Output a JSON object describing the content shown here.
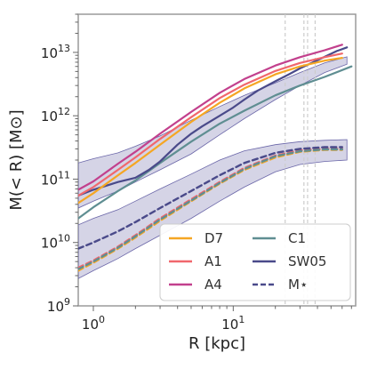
{
  "chart_data": {
    "type": "line",
    "xlabel": "R [kpc]",
    "ylabel": "M(< R) [M⊙]",
    "xscale": "log",
    "yscale": "log",
    "xlim": [
      0.78,
      75
    ],
    "ylim": [
      1000000000.0,
      40000000000000.0
    ],
    "grid": false,
    "legend_placement": "lower-right",
    "x_ticks": [
      {
        "value": 1,
        "base": "10",
        "exp": "0"
      },
      {
        "value": 10,
        "base": "10",
        "exp": "1"
      }
    ],
    "y_ticks": [
      {
        "value": 1000000000.0,
        "base": "10",
        "exp": "9"
      },
      {
        "value": 10000000000.0,
        "base": "10",
        "exp": "10"
      },
      {
        "value": 100000000000.0,
        "base": "10",
        "exp": "11"
      },
      {
        "value": 1000000000000.0,
        "base": "10",
        "exp": "12"
      },
      {
        "value": 10000000000000.0,
        "base": "10",
        "exp": "13"
      }
    ],
    "vlines": [
      {
        "x": 23.5,
        "color": "#cccccc"
      },
      {
        "x": 32,
        "color": "#cccccc"
      },
      {
        "x": 34,
        "color": "#cccccc"
      },
      {
        "x": 38.5,
        "color": "#cccccc"
      }
    ],
    "bands": [
      {
        "color": "#b3b0d1",
        "x": [
          0.78,
          1,
          1.5,
          2,
          3,
          5,
          8,
          12,
          20,
          30,
          45,
          65
        ],
        "upper": [
          180000000000.0,
          210000000000.0,
          260000000000.0,
          330000000000.0,
          480000000000.0,
          850000000000.0,
          1400000000000.0,
          2100000000000.0,
          3300000000000.0,
          4800000000000.0,
          6800000000000.0,
          8500000000000.0
        ],
        "lower": [
          35000000000.0,
          45000000000.0,
          65000000000.0,
          90000000000.0,
          140000000000.0,
          250000000000.0,
          500000000000.0,
          900000000000.0,
          1800000000000.0,
          3000000000000.0,
          4800000000000.0,
          6500000000000.0
        ]
      },
      {
        "color": "#b3b0d1",
        "x": [
          0.78,
          1,
          1.5,
          2,
          3,
          5,
          8,
          12,
          20,
          30,
          45,
          65
        ],
        "upper": [
          19000000000.0,
          24000000000.0,
          33000000000.0,
          45000000000.0,
          70000000000.0,
          120000000000.0,
          200000000000.0,
          280000000000.0,
          350000000000.0,
          390000000000.0,
          410000000000.0,
          420000000000.0
        ],
        "lower": [
          2700000000.0,
          3600000000.0,
          5600000000.0,
          8000000000.0,
          13000000000.0,
          24000000000.0,
          45000000000.0,
          75000000000.0,
          130000000000.0,
          170000000000.0,
          190000000000.0,
          200000000000.0
        ]
      }
    ],
    "series": [
      {
        "name": "D7",
        "color": "#f5a623",
        "dash": false,
        "x": [
          0.78,
          1,
          1.5,
          2,
          3,
          5,
          8,
          12,
          20,
          30,
          45,
          60
        ],
        "y": [
          42000000000.0,
          60000000000.0,
          115000000000.0,
          180000000000.0,
          350000000000.0,
          800000000000.0,
          1600000000000.0,
          2700000000000.0,
          4500000000000.0,
          6000000000000.0,
          7400000000000.0,
          8200000000000.0
        ]
      },
      {
        "name": "A1",
        "color": "#f0676d",
        "dash": false,
        "x": [
          0.78,
          1,
          1.5,
          2,
          3,
          5,
          8,
          12,
          20,
          30,
          45,
          60
        ],
        "y": [
          55000000000.0,
          75000000000.0,
          140000000000.0,
          220000000000.0,
          430000000000.0,
          950000000000.0,
          1900000000000.0,
          3100000000000.0,
          5100000000000.0,
          6800000000000.0,
          8400000000000.0,
          9600000000000.0
        ]
      },
      {
        "name": "A4",
        "color": "#c2408d",
        "dash": false,
        "x": [
          0.78,
          1,
          1.5,
          2,
          3,
          5,
          8,
          12,
          20,
          30,
          45,
          60
        ],
        "y": [
          68000000000.0,
          92000000000.0,
          175000000000.0,
          270000000000.0,
          520000000000.0,
          1150000000000.0,
          2300000000000.0,
          3800000000000.0,
          6200000000000.0,
          8400000000000.0,
          10800000000000.0,
          13200000000000.0
        ]
      },
      {
        "name": "C1",
        "color": "#5f8e92",
        "dash": false,
        "x": [
          0.78,
          1,
          1.5,
          2,
          3,
          5,
          8,
          12,
          20,
          30,
          45,
          70
        ],
        "y": [
          24000000000.0,
          36000000000.0,
          65000000000.0,
          95000000000.0,
          180000000000.0,
          390000000000.0,
          750000000000.0,
          1200000000000.0,
          2100000000000.0,
          3000000000000.0,
          4100000000000.0,
          6000000000000.0
        ]
      },
      {
        "name": "SW05",
        "color": "#4a4a8a",
        "dash": false,
        "x": [
          0.78,
          1,
          1.5,
          2,
          2.5,
          3,
          4,
          5,
          6,
          8,
          10,
          12,
          15,
          20,
          25,
          30,
          40,
          55,
          65
        ],
        "y": [
          55000000000.0,
          68000000000.0,
          90000000000.0,
          105000000000.0,
          140000000000.0,
          190000000000.0,
          350000000000.0,
          520000000000.0,
          680000000000.0,
          1000000000000.0,
          1350000000000.0,
          1800000000000.0,
          2500000000000.0,
          3500000000000.0,
          4500000000000.0,
          5600000000000.0,
          7500000000000.0,
          10500000000000.0,
          12000000000000.0
        ]
      },
      {
        "name": "M⋆",
        "color": "#4a4a8a",
        "dash": true,
        "x": [
          0.78,
          1,
          1.5,
          2,
          3,
          5,
          8,
          12,
          20,
          30,
          45,
          60
        ],
        "y": [
          8000000000.0,
          10000000000.0,
          15000000000.0,
          21000000000.0,
          35000000000.0,
          65000000000.0,
          115000000000.0,
          180000000000.0,
          260000000000.0,
          300000000000.0,
          320000000000.0,
          320000000000.0
        ]
      },
      {
        "name": "",
        "color": "#f5a623",
        "dash": true,
        "x": [
          0.78,
          1,
          1.5,
          2,
          3,
          5,
          8,
          12,
          20,
          30,
          45,
          60
        ],
        "y": [
          3600000000.0,
          4800000000.0,
          8000000000.0,
          12000000000.0,
          22000000000.0,
          45000000000.0,
          85000000000.0,
          140000000000.0,
          220000000000.0,
          270000000000.0,
          290000000000.0,
          290000000000.0
        ]
      },
      {
        "name": "",
        "color": "#f0676d",
        "dash": true,
        "x": [
          0.78,
          1,
          1.5,
          2,
          3,
          5,
          8,
          12,
          20,
          30,
          45,
          60
        ],
        "y": [
          4000000000.0,
          5200000000.0,
          8600000000.0,
          13000000000.0,
          24000000000.0,
          48000000000.0,
          90000000000.0,
          150000000000.0,
          235000000000.0,
          285000000000.0,
          300000000000.0,
          300000000000.0
        ]
      },
      {
        "name": "",
        "color": "#5f8e92",
        "dash": true,
        "x": [
          0.78,
          1,
          1.5,
          2,
          3,
          5,
          8,
          12,
          20,
          30,
          45,
          60
        ],
        "y": [
          3800000000.0,
          5000000000.0,
          8300000000.0,
          12500000000.0,
          23000000000.0,
          46000000000.0,
          87000000000.0,
          145000000000.0,
          230000000000.0,
          275000000000.0,
          295000000000.0,
          295000000000.0
        ]
      }
    ],
    "legend": [
      {
        "label": "D7",
        "color": "#f5a623",
        "dash": false
      },
      {
        "label": "C1",
        "color": "#5f8e92",
        "dash": false
      },
      {
        "label": "A1",
        "color": "#f0676d",
        "dash": false
      },
      {
        "label": "SW05",
        "color": "#4a4a8a",
        "dash": false
      },
      {
        "label": "A4",
        "color": "#c2408d",
        "dash": false
      },
      {
        "label": "M⋆",
        "color": "#4a4a8a",
        "dash": true
      }
    ]
  }
}
